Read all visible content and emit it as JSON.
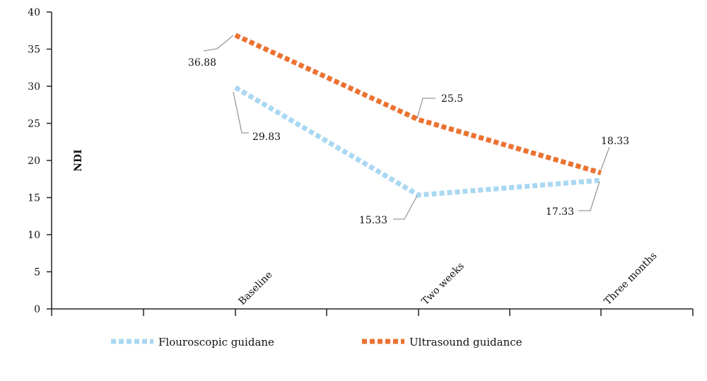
{
  "chart_data": {
    "type": "line",
    "title": "",
    "xlabel": "",
    "ylabel": "NDI",
    "categories": [
      "Baseline",
      "Two weeks",
      "Three months"
    ],
    "ylim": [
      0,
      40
    ],
    "yticks": [
      0,
      5,
      10,
      15,
      20,
      25,
      30,
      35,
      40
    ],
    "grid": false,
    "legend_position": "bottom",
    "series": [
      {
        "name": "Flouroscopic guidane",
        "values": [
          29.83,
          15.33,
          17.33
        ],
        "labels": [
          "29.83",
          "15.33",
          "17.33"
        ],
        "color": "#a9d8f2",
        "style": "dashed"
      },
      {
        "name": "Ultrasound guidance",
        "values": [
          36.88,
          25.5,
          18.33
        ],
        "labels": [
          "36.88",
          "25.5",
          "18.33"
        ],
        "color": "#ec7231",
        "style": "dashed"
      }
    ]
  },
  "colors": {
    "axis": "#222222",
    "leader": "#999999"
  }
}
